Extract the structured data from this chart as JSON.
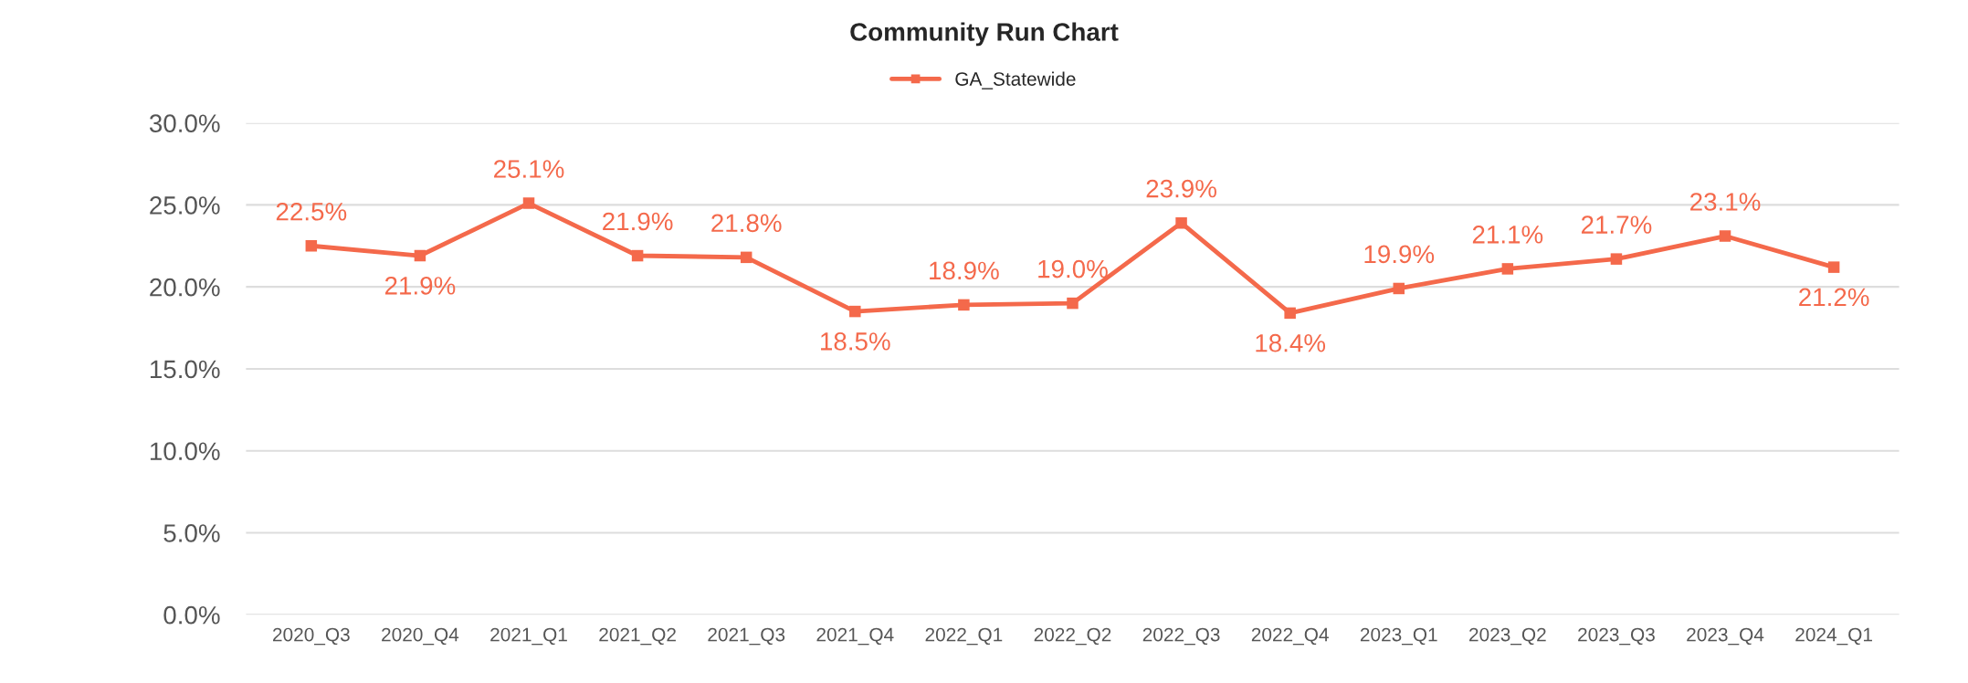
{
  "chart_data": {
    "type": "line",
    "title": "Community Run Chart",
    "categories": [
      "2020_Q3",
      "2020_Q4",
      "2021_Q1",
      "2021_Q2",
      "2021_Q3",
      "2021_Q4",
      "2022_Q1",
      "2022_Q2",
      "2022_Q3",
      "2022_Q4",
      "2023_Q1",
      "2023_Q2",
      "2023_Q3",
      "2023_Q4",
      "2024_Q1"
    ],
    "series": [
      {
        "name": "GA_Statewide",
        "color": "#f4694b",
        "values": [
          22.5,
          21.9,
          25.1,
          21.9,
          21.8,
          18.5,
          18.9,
          19.0,
          23.9,
          18.4,
          19.9,
          21.1,
          21.7,
          23.1,
          21.2
        ],
        "value_labels": [
          "22.5%",
          "21.9%",
          "25.1%",
          "21.9%",
          "21.8%",
          "18.5%",
          "18.9%",
          "19.0%",
          "23.9%",
          "18.4%",
          "19.9%",
          "21.1%",
          "21.7%",
          "23.1%",
          "21.2%"
        ]
      }
    ],
    "ylim": [
      0,
      30
    ],
    "yticks": [
      {
        "value": 0,
        "label": "0.0%"
      },
      {
        "value": 5,
        "label": "5.0%"
      },
      {
        "value": 10,
        "label": "10.0%"
      },
      {
        "value": 15,
        "label": "15.0%"
      },
      {
        "value": 20,
        "label": "20.0%"
      },
      {
        "value": 25,
        "label": "25.0%"
      },
      {
        "value": 30,
        "label": "30.0%"
      }
    ],
    "grid": "y",
    "legend": "top",
    "marker": "square",
    "line_style": "solid"
  }
}
